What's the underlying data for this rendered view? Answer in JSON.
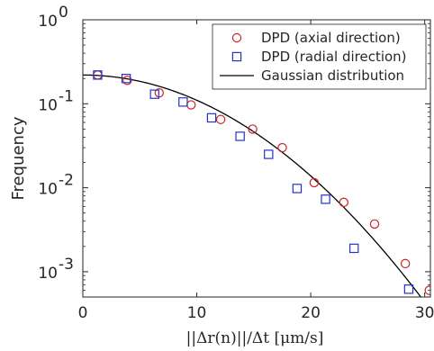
{
  "chart_data": {
    "type": "scatter",
    "x_axis": {
      "label": "||Δr(n)||/Δt [μm/s]",
      "min": 0,
      "max": 30.5,
      "ticks": [
        0,
        10,
        20,
        30
      ],
      "tick_labels": [
        "0",
        "10",
        "20",
        "30"
      ]
    },
    "y_axis": {
      "label": "Frequency",
      "scale": "log",
      "min": 0.0005,
      "max": 1,
      "ticks": [
        0.001,
        0.01,
        0.1,
        1
      ],
      "tick_labels": [
        {
          "base": "10",
          "exp": "-3"
        },
        {
          "base": "10",
          "exp": "-2"
        },
        {
          "base": "10",
          "exp": "-1"
        },
        {
          "base": "10",
          "exp": "0"
        }
      ]
    },
    "legend": {
      "placement": "top-right",
      "entries": [
        {
          "label": "DPD (axial direction)",
          "marker": "circle",
          "color": "#cc2222"
        },
        {
          "label": "DPD (radial direction)",
          "marker": "square",
          "color": "#2233cc"
        },
        {
          "label": "Gaussian distribution",
          "marker": "line",
          "color": "#000000"
        }
      ]
    },
    "series": [
      {
        "name": "DPD (axial direction)",
        "marker": "circle",
        "color": "#cc2222",
        "points": [
          [
            1.3,
            0.22
          ],
          [
            3.9,
            0.19
          ],
          [
            6.7,
            0.135
          ],
          [
            9.5,
            0.097
          ],
          [
            12.1,
            0.065
          ],
          [
            14.9,
            0.05
          ],
          [
            17.5,
            0.03
          ],
          [
            20.3,
            0.0115
          ],
          [
            22.9,
            0.0067
          ],
          [
            25.6,
            0.0037
          ],
          [
            28.3,
            0.00125
          ],
          [
            30.4,
            0.0006
          ]
        ]
      },
      {
        "name": "DPD (radial direction)",
        "marker": "square",
        "color": "#2233cc",
        "points": [
          [
            1.3,
            0.22
          ],
          [
            3.8,
            0.2
          ],
          [
            6.3,
            0.13
          ],
          [
            8.8,
            0.105
          ],
          [
            11.3,
            0.068
          ],
          [
            13.8,
            0.041
          ],
          [
            16.3,
            0.025
          ],
          [
            18.8,
            0.0098
          ],
          [
            21.3,
            0.0073
          ],
          [
            23.8,
            0.0019
          ],
          [
            28.6,
            0.00062
          ]
        ]
      },
      {
        "name": "Gaussian distribution",
        "type": "line",
        "color": "#000000",
        "function": {
          "form": "gaussian",
          "peak": 0.22,
          "sigma": 8.5
        }
      }
    ]
  }
}
